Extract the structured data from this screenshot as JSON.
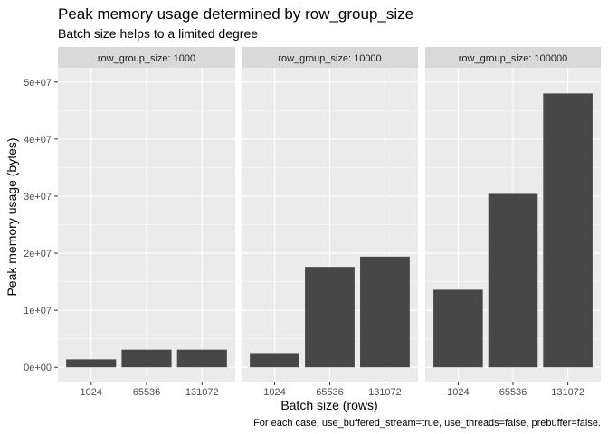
{
  "chart_data": {
    "type": "bar",
    "title": "Peak memory usage determined by row_group_size",
    "subtitle": "Batch size helps to a limited degree",
    "xlabel": "Batch size (rows)",
    "ylabel": "Peak memory usage (bytes)",
    "caption": "For each case, use_buffered_stream=true, use_threads=false, prebuffer=false.",
    "categories": [
      "1024",
      "65536",
      "131072"
    ],
    "ylim": [
      -2500000,
      52500000
    ],
    "yticks": [
      0,
      10000000,
      20000000,
      30000000,
      40000000,
      50000000
    ],
    "ytick_labels": [
      "0e+00",
      "1e+07",
      "2e+07",
      "3e+07",
      "4e+07",
      "5e+07"
    ],
    "bar_color": "#474747",
    "panel_bg": "#ebebeb",
    "strip_bg": "#d9d9d9",
    "grid": true,
    "facets": [
      {
        "label": "row_group_size: 1000",
        "values": [
          1400000,
          3100000,
          3100000
        ]
      },
      {
        "label": "row_group_size: 10000",
        "values": [
          2500000,
          17600000,
          19400000
        ]
      },
      {
        "label": "row_group_size: 100000",
        "values": [
          13600000,
          30400000,
          48000000
        ]
      }
    ]
  }
}
